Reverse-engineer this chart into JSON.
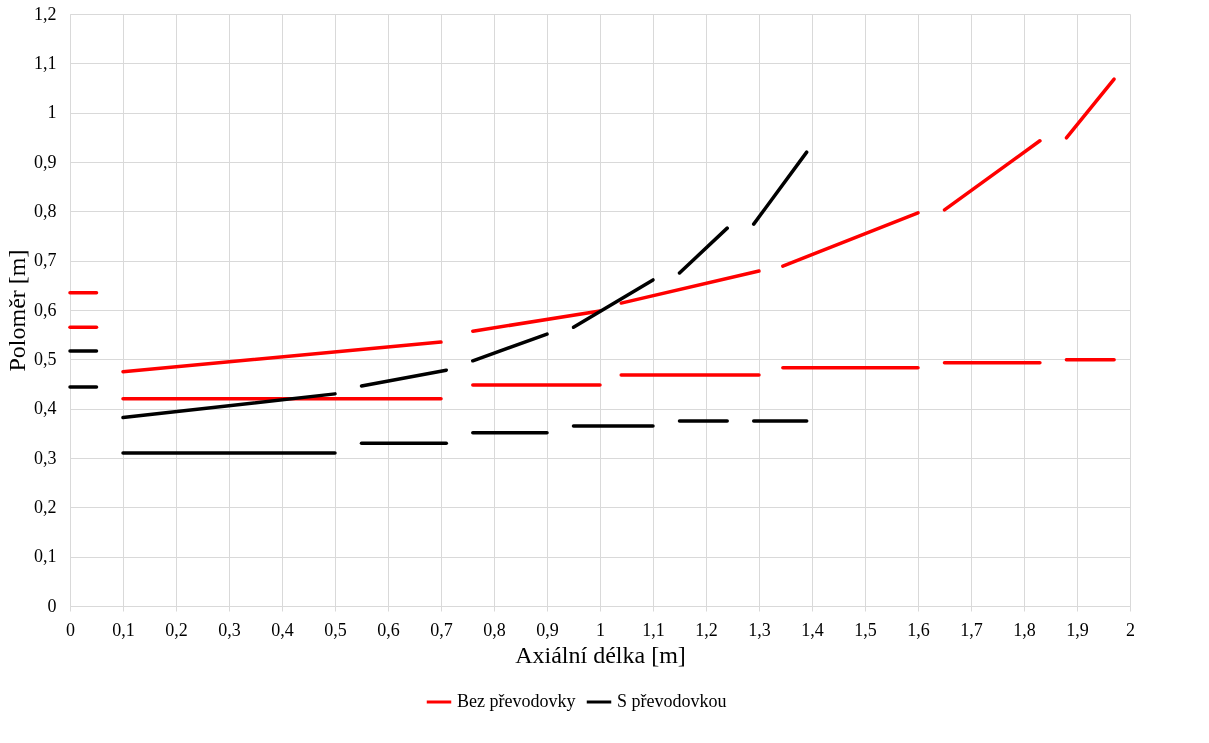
{
  "chart_data": {
    "type": "line",
    "xlabel": "Axiální délka [m]",
    "ylabel": "Poloměr [m]",
    "xlim": [
      0,
      2
    ],
    "xticks": [
      0,
      {
        "value": 0.1,
        "label": "0,1"
      },
      {
        "value": 0.2,
        "label": "0,2"
      },
      {
        "value": 0.3,
        "label": "0,3"
      },
      {
        "value": 0.4,
        "label": "0,4"
      },
      {
        "value": 0.5,
        "label": "0,5"
      },
      {
        "value": 0.6,
        "label": "0,6"
      },
      {
        "value": 0.7,
        "label": "0,7"
      },
      {
        "value": 0.8,
        "label": "0,8"
      },
      {
        "value": 0.9,
        "label": "0,9"
      },
      1,
      {
        "value": 1.1,
        "label": "1,1"
      },
      {
        "value": 1.2,
        "label": "1,2"
      },
      {
        "value": 1.3,
        "label": "1,3"
      },
      {
        "value": 1.4,
        "label": "1,4"
      },
      {
        "value": 1.5,
        "label": "1,5"
      },
      {
        "value": 1.6,
        "label": "1,6"
      },
      {
        "value": 1.7,
        "label": "1,7"
      },
      {
        "value": 1.8,
        "label": "1,8"
      },
      {
        "value": 1.9,
        "label": "1,9"
      },
      2
    ],
    "ylim": [
      0,
      1.2
    ],
    "yticks": [
      0,
      {
        "value": 0.1,
        "label": "0,1"
      },
      {
        "value": 0.2,
        "label": "0,2"
      },
      {
        "value": 0.3,
        "label": "0,3"
      },
      {
        "value": 0.4,
        "label": "0,4"
      },
      {
        "value": 0.5,
        "label": "0,5"
      },
      {
        "value": 0.6,
        "label": "0,6"
      },
      {
        "value": 0.7,
        "label": "0,7"
      },
      {
        "value": 0.8,
        "label": "0,8"
      },
      {
        "value": 0.9,
        "label": "0,9"
      },
      1,
      {
        "value": 1.1,
        "label": "1,1"
      },
      {
        "value": 1.2,
        "label": "1,2"
      }
    ],
    "grid": true,
    "legend": "bottom",
    "line_style": "solid",
    "series": [
      {
        "name": "Bez převodovky",
        "color": "#ff0000",
        "x": [
          0,
          0.05
        ],
        "values": [
          0.635,
          0.635
        ]
      },
      {
        "color": "#ff0000",
        "x": [
          0,
          0.05
        ],
        "values": [
          0.565,
          0.565
        ]
      },
      {
        "color": "#ff0000",
        "x": [
          0.1,
          0.7
        ],
        "values": [
          0.475,
          0.535
        ]
      },
      {
        "color": "#ff0000",
        "x": [
          0.1,
          0.7
        ],
        "values": [
          0.42,
          0.42
        ]
      },
      {
        "color": "#ff0000",
        "x": [
          0.76,
          1.0
        ],
        "values": [
          0.557,
          0.598
        ]
      },
      {
        "color": "#ff0000",
        "x": [
          0.76,
          1.0
        ],
        "values": [
          0.448,
          0.448
        ]
      },
      {
        "color": "#ff0000",
        "x": [
          1.04,
          1.3
        ],
        "values": [
          0.614,
          0.679
        ]
      },
      {
        "color": "#ff0000",
        "x": [
          1.04,
          1.3
        ],
        "values": [
          0.468,
          0.468
        ]
      },
      {
        "color": "#ff0000",
        "x": [
          1.345,
          1.6
        ],
        "values": [
          0.689,
          0.797
        ]
      },
      {
        "color": "#ff0000",
        "x": [
          1.345,
          1.6
        ],
        "values": [
          0.483,
          0.483
        ]
      },
      {
        "color": "#ff0000",
        "x": [
          1.65,
          1.83
        ],
        "values": [
          0.803,
          0.943
        ]
      },
      {
        "color": "#ff0000",
        "x": [
          1.65,
          1.83
        ],
        "values": [
          0.493,
          0.493
        ]
      },
      {
        "color": "#ff0000",
        "x": [
          1.88,
          1.97
        ],
        "values": [
          0.949,
          1.068
        ]
      },
      {
        "color": "#ff0000",
        "x": [
          1.88,
          1.97
        ],
        "values": [
          0.499,
          0.499
        ]
      },
      {
        "name": "S převodovkou",
        "color": "#000000",
        "x": [
          0,
          0.05
        ],
        "values": [
          0.517,
          0.517
        ]
      },
      {
        "color": "#000000",
        "x": [
          0,
          0.05
        ],
        "values": [
          0.444,
          0.444
        ]
      },
      {
        "color": "#000000",
        "x": [
          0.1,
          0.5
        ],
        "values": [
          0.382,
          0.43
        ]
      },
      {
        "color": "#000000",
        "x": [
          0.1,
          0.5
        ],
        "values": [
          0.31,
          0.31
        ]
      },
      {
        "color": "#000000",
        "x": [
          0.55,
          0.71
        ],
        "values": [
          0.446,
          0.478
        ]
      },
      {
        "color": "#000000",
        "x": [
          0.55,
          0.71
        ],
        "values": [
          0.33,
          0.33
        ]
      },
      {
        "color": "#000000",
        "x": [
          0.76,
          0.9
        ],
        "values": [
          0.497,
          0.551
        ]
      },
      {
        "color": "#000000",
        "x": [
          0.76,
          0.9
        ],
        "values": [
          0.351,
          0.351
        ]
      },
      {
        "color": "#000000",
        "x": [
          0.95,
          1.1
        ],
        "values": [
          0.565,
          0.661
        ]
      },
      {
        "color": "#000000",
        "x": [
          0.95,
          1.1
        ],
        "values": [
          0.365,
          0.365
        ]
      },
      {
        "color": "#000000",
        "x": [
          1.15,
          1.24
        ],
        "values": [
          0.675,
          0.766
        ]
      },
      {
        "color": "#000000",
        "x": [
          1.15,
          1.24
        ],
        "values": [
          0.375,
          0.375
        ]
      },
      {
        "color": "#000000",
        "x": [
          1.29,
          1.39
        ],
        "values": [
          0.774,
          0.92
        ]
      },
      {
        "color": "#000000",
        "x": [
          1.29,
          1.39
        ],
        "values": [
          0.375,
          0.375
        ]
      }
    ]
  }
}
